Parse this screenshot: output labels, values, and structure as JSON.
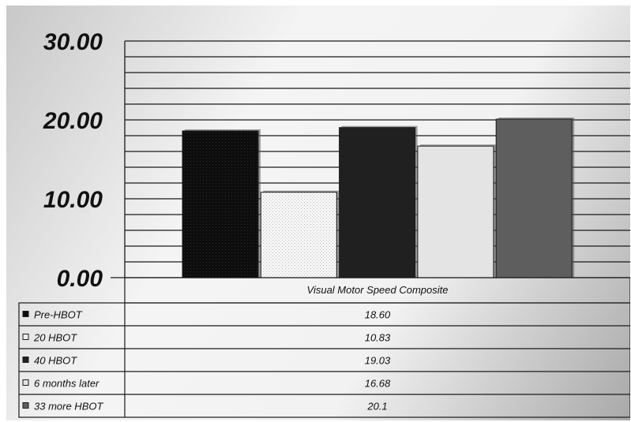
{
  "chart_data": {
    "type": "bar",
    "categories": [
      "Visual Motor Speed Composite"
    ],
    "series": [
      {
        "name": "Pre-HBOT",
        "values": [
          18.6
        ],
        "value_label": "18.60",
        "color": "#0d0d0d",
        "pattern": "dots-dark"
      },
      {
        "name": "20 HBOT",
        "values": [
          10.83
        ],
        "value_label": "10.83",
        "color": "#f0f0f0",
        "pattern": "dots-light"
      },
      {
        "name": "40 HBOT",
        "values": [
          19.03
        ],
        "value_label": "19.03",
        "color": "#202020",
        "pattern": "none"
      },
      {
        "name": "6 months later",
        "values": [
          16.68
        ],
        "value_label": "16.68",
        "color": "#e4e4e4",
        "pattern": "none"
      },
      {
        "name": "33 more HBOT",
        "values": [
          20.1
        ],
        "value_label": "20.1",
        "color": "#5e5e5e",
        "pattern": "none"
      }
    ],
    "y_ticks": [
      "0.00",
      "10.00",
      "20.00",
      "30.00"
    ],
    "ylim": [
      0,
      30
    ],
    "minor_gridline_step": 2,
    "grid": true,
    "legend": "data-table-below",
    "title": "",
    "xlabel": "",
    "ylabel": ""
  }
}
